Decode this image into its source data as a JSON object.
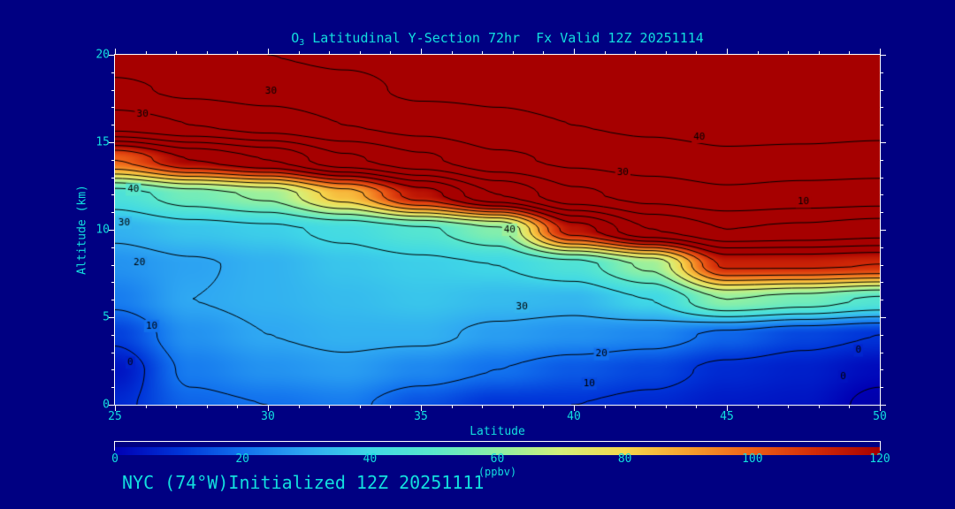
{
  "title": {
    "pre": "O",
    "sub": "3",
    "post": " Latitudinal Y-Section 72hr  Fx Valid 12Z 20251114"
  },
  "footer": "NYC (74°W)Initialized 12Z 20251111",
  "colors": {
    "background": "#000082",
    "text": "#12DEDE",
    "axis": "#FFFFFF",
    "contour_line": "#000000"
  },
  "x_axis": {
    "label": "Latitude",
    "min": 25,
    "max": 50,
    "major": [
      25,
      30,
      35,
      40,
      45,
      50
    ],
    "minor_step": 1
  },
  "y_axis": {
    "label": "Altitude (km)",
    "min": 0,
    "max": 20,
    "major": [
      0,
      5,
      10,
      15,
      20
    ],
    "minor_step": 1
  },
  "colorbar": {
    "label": "(ppbv)",
    "min": 0,
    "max": 120,
    "ticks": [
      0,
      20,
      40,
      60,
      80,
      100,
      120
    ]
  },
  "chart_data": {
    "type": "heatmap",
    "title": "O3 Latitudinal Y-Section 72hr Fx Valid 12Z 20251114",
    "xlabel": "Latitude",
    "ylabel": "Altitude (km)",
    "units": "ppbv",
    "x_range": [
      25,
      50
    ],
    "y_range": [
      0,
      20
    ],
    "grid_on": false,
    "lats": [
      25,
      27.5,
      30,
      32.5,
      35,
      37.5,
      40,
      42.5,
      45,
      47.5,
      50
    ],
    "alts": [
      0,
      2,
      4,
      6,
      8,
      10,
      12,
      14,
      16,
      18,
      20
    ],
    "values": [
      [
        8,
        18,
        20,
        22,
        15,
        10,
        10,
        8,
        5,
        4,
        -2
      ],
      [
        4,
        22,
        26,
        28,
        24,
        20,
        16,
        13,
        8,
        6,
        2
      ],
      [
        12,
        26,
        30,
        32,
        32,
        28,
        26,
        24,
        18,
        13,
        10
      ],
      [
        22,
        30,
        32,
        34,
        36,
        34,
        33,
        40,
        60,
        55,
        48
      ],
      [
        26,
        29,
        32,
        36,
        38,
        40,
        46,
        62,
        112,
        112,
        110
      ],
      [
        32,
        36,
        38,
        42,
        48,
        58,
        115,
        140,
        150,
        148,
        145
      ],
      [
        45,
        55,
        62,
        85,
        115,
        140,
        158,
        164,
        168,
        166,
        165
      ],
      [
        100,
        120,
        130,
        148,
        158,
        168,
        172,
        175,
        178,
        177,
        176
      ],
      [
        155,
        160,
        165,
        170,
        174,
        178,
        180,
        182,
        184,
        184,
        183
      ],
      [
        168,
        172,
        174,
        177,
        182,
        182,
        184,
        186,
        187,
        187,
        186
      ],
      [
        175,
        178,
        180,
        182,
        184,
        186,
        188,
        188,
        189,
        189,
        188
      ]
    ],
    "contour_interval": 10,
    "contour_levels": [
      0,
      10,
      20,
      30,
      40,
      50,
      60,
      70,
      80,
      90,
      100,
      110,
      120,
      130,
      140,
      150,
      160,
      170,
      180,
      190
    ],
    "colormap_stops": [
      [
        -10,
        "#000080"
      ],
      [
        0,
        "#0000B4"
      ],
      [
        10,
        "#0034D8"
      ],
      [
        20,
        "#1272EE"
      ],
      [
        30,
        "#2FA8F2"
      ],
      [
        40,
        "#40D8E6"
      ],
      [
        50,
        "#5AE8CC"
      ],
      [
        60,
        "#8FF0A4"
      ],
      [
        70,
        "#D4F07A"
      ],
      [
        80,
        "#F6D84E"
      ],
      [
        90,
        "#F6A02E"
      ],
      [
        100,
        "#EE6018"
      ],
      [
        110,
        "#D22A08"
      ],
      [
        120,
        "#A60000"
      ],
      [
        200,
        "#A60000"
      ]
    ],
    "contour_labels": [
      {
        "lat": 30.1,
        "alt": 17.9,
        "text": "30"
      },
      {
        "lat": 25.9,
        "alt": 16.6,
        "text": "30"
      },
      {
        "lat": 25.6,
        "alt": 12.3,
        "text": "40"
      },
      {
        "lat": 25.3,
        "alt": 10.4,
        "text": "30"
      },
      {
        "lat": 25.8,
        "alt": 8.1,
        "text": "20"
      },
      {
        "lat": 26.2,
        "alt": 4.5,
        "text": "10"
      },
      {
        "lat": 25.5,
        "alt": 2.4,
        "text": "0"
      },
      {
        "lat": 37.9,
        "alt": 10.0,
        "text": "40"
      },
      {
        "lat": 38.3,
        "alt": 5.6,
        "text": "30"
      },
      {
        "lat": 40.9,
        "alt": 2.9,
        "text": "20"
      },
      {
        "lat": 40.5,
        "alt": 1.2,
        "text": "10"
      },
      {
        "lat": 41.6,
        "alt": 13.3,
        "text": "30"
      },
      {
        "lat": 44.1,
        "alt": 15.3,
        "text": "40"
      },
      {
        "lat": 47.5,
        "alt": 11.6,
        "text": "10"
      },
      {
        "lat": 49.3,
        "alt": 3.1,
        "text": "0"
      },
      {
        "lat": 48.8,
        "alt": 1.6,
        "text": "0"
      }
    ]
  }
}
